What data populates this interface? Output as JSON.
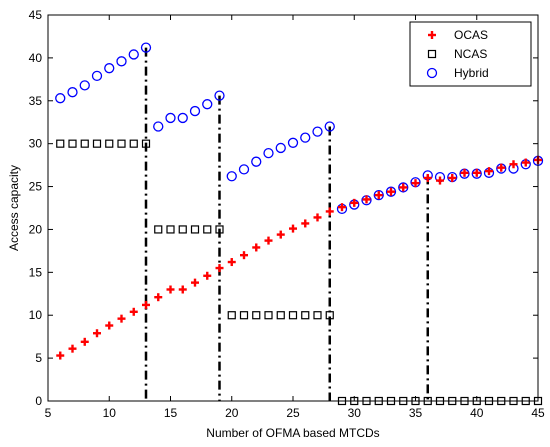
{
  "chart_data": {
    "type": "scatter",
    "xlabel": "Number of OFMA based MTCDs",
    "ylabel": "Access capacity",
    "xlim": [
      5,
      45
    ],
    "ylim": [
      0,
      45
    ],
    "xticks": [
      5,
      10,
      15,
      20,
      25,
      30,
      35,
      40,
      45
    ],
    "yticks": [
      0,
      5,
      10,
      15,
      20,
      25,
      30,
      35,
      40,
      45
    ],
    "grid": false,
    "legend_position": "top-right",
    "colors": {
      "ocas": "#ff0000",
      "ncas": "#000000",
      "hybrid": "#0000ff",
      "drop_lines": "#000000"
    },
    "series": [
      {
        "name": "OCAS",
        "marker": "plus",
        "x": [
          6,
          7,
          8,
          9,
          10,
          11,
          12,
          13,
          14,
          15,
          16,
          17,
          18,
          19,
          20,
          21,
          22,
          23,
          24,
          25,
          26,
          27,
          28,
          29,
          30,
          31,
          32,
          33,
          34,
          35,
          36,
          37,
          38,
          39,
          40,
          41,
          42,
          43,
          44,
          45
        ],
        "y": [
          5.3,
          6.1,
          6.9,
          7.9,
          8.8,
          9.6,
          10.4,
          11.2,
          12.1,
          13.0,
          13.0,
          13.8,
          14.6,
          15.5,
          16.2,
          17.0,
          17.9,
          18.7,
          19.4,
          20.1,
          20.7,
          21.4,
          22.1,
          22.6,
          23.1,
          23.5,
          24.0,
          24.4,
          24.9,
          25.4,
          26.0,
          25.7,
          26.0,
          26.6,
          26.6,
          26.8,
          27.2,
          27.6,
          27.8,
          28.1
        ]
      },
      {
        "name": "NCAS",
        "marker": "square",
        "x": [
          6,
          7,
          8,
          9,
          10,
          11,
          12,
          13,
          14,
          15,
          16,
          17,
          18,
          19,
          20,
          21,
          22,
          23,
          24,
          25,
          26,
          27,
          28,
          29,
          30,
          31,
          32,
          33,
          34,
          35,
          36,
          37,
          38,
          39,
          40,
          41,
          42,
          43,
          44,
          45
        ],
        "y": [
          30,
          30,
          30,
          30,
          30,
          30,
          30,
          30,
          20,
          20,
          20,
          20,
          20,
          20,
          10,
          10,
          10,
          10,
          10,
          10,
          10,
          10,
          10,
          0,
          0,
          0,
          0,
          0,
          0,
          0,
          0,
          0,
          0,
          0,
          0,
          0,
          0,
          0,
          0,
          0
        ]
      },
      {
        "name": "Hybrid",
        "marker": "circle",
        "x": [
          6,
          7,
          8,
          9,
          10,
          11,
          12,
          13,
          14,
          15,
          16,
          17,
          18,
          19,
          20,
          21,
          22,
          23,
          24,
          25,
          26,
          27,
          28,
          29,
          30,
          31,
          32,
          33,
          34,
          35,
          36,
          37,
          38,
          39,
          40,
          41,
          42,
          43,
          44,
          45
        ],
        "y": [
          35.3,
          36.0,
          36.8,
          37.9,
          38.8,
          39.6,
          40.4,
          41.2,
          32.0,
          33.0,
          33.0,
          33.8,
          34.6,
          35.6,
          26.2,
          27.0,
          27.9,
          28.9,
          29.5,
          30.1,
          30.7,
          31.4,
          32.0,
          22.4,
          22.9,
          23.4,
          24.0,
          24.4,
          24.9,
          25.5,
          26.3,
          26.1,
          26.1,
          26.5,
          26.5,
          26.6,
          27.1,
          27.1,
          27.6,
          28.0
        ]
      }
    ],
    "drop_lines": [
      {
        "x": 13,
        "y_top": 41.2
      },
      {
        "x": 19,
        "y_top": 35.6
      },
      {
        "x": 28,
        "y_top": 32.0
      },
      {
        "x": 36,
        "y_top": 26.3
      }
    ]
  }
}
